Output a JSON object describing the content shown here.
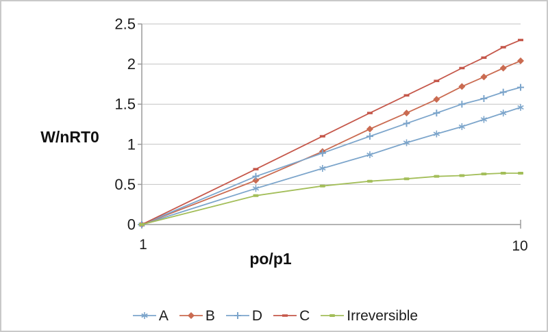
{
  "chart_data": {
    "type": "line",
    "title": "",
    "xlabel": "po/p1",
    "ylabel": "W/nRT0",
    "x_scale": "log",
    "xlim": [
      1,
      10
    ],
    "ylim": [
      0,
      2.5
    ],
    "grid": "horizontal",
    "legend_position": "bottom",
    "x_ticks": [
      "1",
      "10"
    ],
    "y_ticks": [
      "0",
      "0.5",
      "1",
      "1.5",
      "2",
      "2.5"
    ],
    "x": [
      1,
      2,
      3,
      4,
      5,
      6,
      7,
      8,
      9,
      10
    ],
    "series": [
      {
        "name": "A",
        "color": "#7CA5CB",
        "marker": "asterisk",
        "values": [
          0,
          0.45,
          0.7,
          0.87,
          1.02,
          1.13,
          1.22,
          1.31,
          1.39,
          1.46
        ]
      },
      {
        "name": "B",
        "color": "#CA6B51",
        "marker": "diamond",
        "values": [
          0,
          0.55,
          0.91,
          1.19,
          1.39,
          1.56,
          1.72,
          1.84,
          1.95,
          2.04
        ]
      },
      {
        "name": "D",
        "color": "#7CA5CB",
        "marker": "plus",
        "values": [
          0,
          0.6,
          0.89,
          1.1,
          1.26,
          1.39,
          1.5,
          1.57,
          1.65,
          1.71
        ]
      },
      {
        "name": "C",
        "color": "#C5574A",
        "marker": "dash",
        "values": [
          0,
          0.69,
          1.1,
          1.39,
          1.61,
          1.79,
          1.95,
          2.08,
          2.21,
          2.3
        ]
      },
      {
        "name": "Irreversible",
        "color": "#A3BE59",
        "marker": "square-dash",
        "values": [
          0,
          0.36,
          0.48,
          0.54,
          0.57,
          0.6,
          0.61,
          0.63,
          0.64,
          0.64
        ]
      }
    ],
    "style": {
      "grid_color": "#C2C2C2",
      "axis_color": "#9A9A9A",
      "tick_label_color": "#1c1c1c"
    }
  }
}
